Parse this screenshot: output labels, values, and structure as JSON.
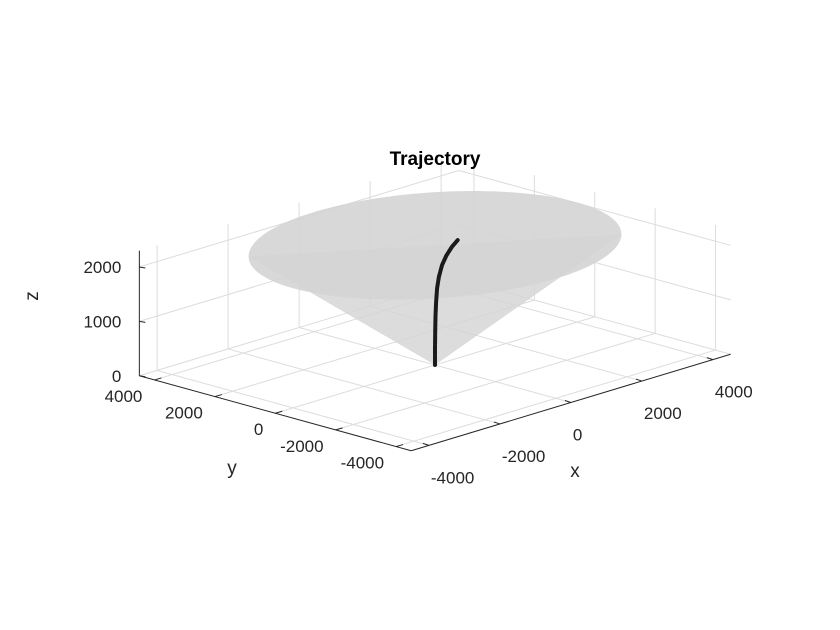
{
  "chart_data": {
    "type": "line",
    "title": "Trajectory",
    "xlabel": "x",
    "ylabel": "y",
    "zlabel": "z",
    "xlim": [
      -4500,
      4500
    ],
    "ylim": [
      -4500,
      4500
    ],
    "zlim": [
      0,
      2300
    ],
    "xticks": [
      -4000,
      -2000,
      0,
      2000,
      4000
    ],
    "xtick_labels": [
      "-4000",
      "-2000",
      "0",
      "2000",
      "4000"
    ],
    "yticks": [
      -4000,
      -2000,
      0,
      2000,
      4000
    ],
    "ytick_labels": [
      "-4000",
      "-2000",
      "0",
      "2000",
      "4000"
    ],
    "zticks": [
      0,
      1000,
      2000
    ],
    "ztick_labels": [
      "0",
      "1000",
      "2000"
    ],
    "grid": true,
    "surface": {
      "type": "cone",
      "apex": [
        0,
        0,
        0
      ],
      "radius_at_top": 4000,
      "height": 2200,
      "color": "#d4d4d4"
    },
    "series": [
      {
        "color": "#1a1a1a",
        "x": [
          0,
          0,
          5,
          15,
          30,
          60,
          110,
          200,
          320,
          480,
          640
        ],
        "y": [
          0,
          0,
          0,
          0,
          0,
          0,
          0,
          0,
          0,
          0,
          0
        ],
        "z": [
          0,
          300,
          600,
          900,
          1150,
          1400,
          1600,
          1800,
          1950,
          2080,
          2170
        ]
      }
    ]
  }
}
